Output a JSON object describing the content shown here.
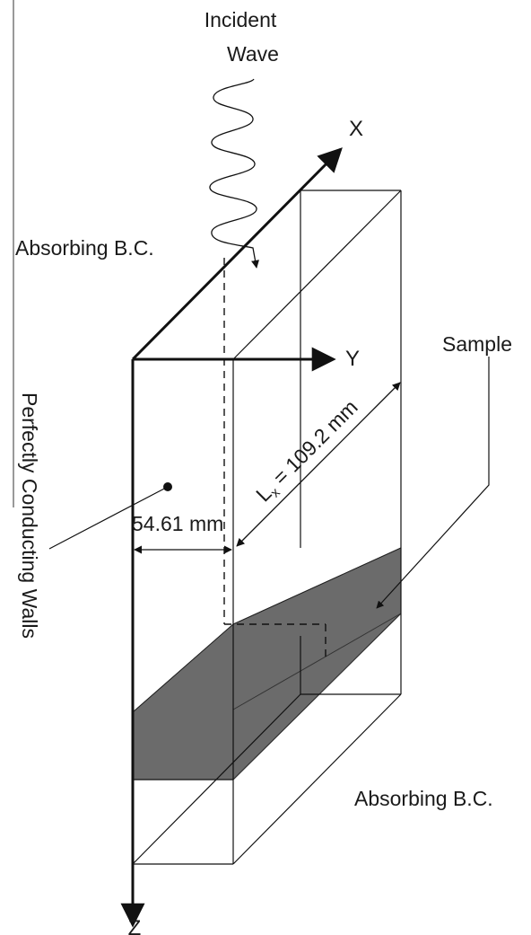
{
  "labels": {
    "incident_wave_line1": "Incident",
    "incident_wave_line2": "Wave",
    "absorbing_bc_top": "Absorbing B.C.",
    "absorbing_bc_bottom": "Absorbing B.C.",
    "sample": "Sample",
    "perfectly_conducting_walls": "Perfectly Conducting Walls",
    "width_dimension": "54.61 mm",
    "length_dimension_prefix": "L",
    "length_dimension_subscript": "x",
    "length_dimension_value": " = 109.2 mm",
    "axis_x": "X",
    "axis_y": "Y",
    "axis_z": "Z"
  },
  "colors": {
    "line": "#111111",
    "sample_fill": "#6b6b6b",
    "background": "#ffffff"
  }
}
